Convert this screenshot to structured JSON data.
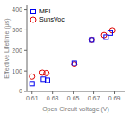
{
  "chart_data": {
    "type": "scatter",
    "xlabel": "Open Circuit voltage (V)",
    "ylabel": "Effective Lifetime (μs)",
    "xlim": [
      0.605,
      0.7
    ],
    "ylim": [
      0,
      420
    ],
    "xticks": [
      0.61,
      0.63,
      0.65,
      0.67,
      0.69
    ],
    "yticks": [
      0,
      100,
      200,
      300,
      400
    ],
    "grid": false,
    "legend": "upper left",
    "series": [
      {
        "name": "MEL",
        "color": "#0000ee",
        "marker": "square",
        "x": [
          0.61,
          0.621,
          0.625,
          0.651,
          0.668,
          0.682,
          0.686
        ],
        "values": [
          38,
          60,
          55,
          138,
          252,
          265,
          285
        ]
      },
      {
        "name": "SunsVoc",
        "color": "#dd0000",
        "marker": "circle",
        "x": [
          0.61,
          0.62,
          0.624,
          0.651,
          0.668,
          0.68,
          0.688
        ],
        "values": [
          73,
          92,
          90,
          133,
          252,
          275,
          298
        ]
      }
    ]
  }
}
